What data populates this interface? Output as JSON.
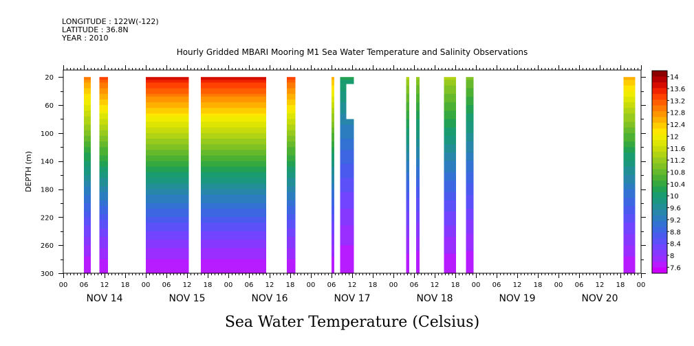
{
  "header": {
    "longitude": "LONGITUDE : 122W(-122)",
    "latitude": "LATITUDE : 36.8N",
    "year": "YEAR : 2010"
  },
  "chart_data": {
    "type": "heatmap",
    "title": "Hourly Gridded MBARI Mooring M1 Sea Water Temperature and Salinity Observations",
    "ylabel": "DEPTH (m)",
    "xlabel": "Sea Water Temperature (Celsius)",
    "y_ticks": [
      "20",
      "60",
      "100",
      "140",
      "180",
      "220",
      "260",
      "300"
    ],
    "y_range_m": [
      10,
      300
    ],
    "y_reversed": true,
    "x_range_hours": [
      0,
      168
    ],
    "x_tick_labels": [
      "00",
      "06",
      "12",
      "18",
      "00",
      "06",
      "12",
      "18",
      "00",
      "06",
      "12",
      "18",
      "00",
      "06",
      "12",
      "18",
      "00",
      "06",
      "12",
      "18",
      "00",
      "06",
      "12",
      "18",
      "00",
      "06",
      "12",
      "18",
      "00"
    ],
    "days": [
      "NOV 14",
      "NOV 15",
      "NOV 16",
      "NOV 17",
      "NOV 18",
      "NOV 19",
      "NOV 20"
    ],
    "colorbar": {
      "labels": [
        "14",
        "13.6",
        "13.2",
        "12.8",
        "12.4",
        "12",
        "11.6",
        "11.2",
        "10.8",
        "10.4",
        "10",
        "9.6",
        "9.2",
        "8.8",
        "8.4",
        "8",
        "7.6"
      ],
      "levels": [
        7.4,
        7.6,
        7.8,
        8.0,
        8.2,
        8.4,
        8.6,
        8.8,
        9.0,
        9.2,
        9.4,
        9.6,
        9.8,
        10.0,
        10.2,
        10.4,
        10.6,
        10.8,
        11.0,
        11.2,
        11.4,
        11.6,
        11.8,
        12.0,
        12.2,
        12.4,
        12.6,
        12.8,
        13.0,
        13.2,
        13.4,
        13.6,
        13.8,
        14.0,
        14.2
      ],
      "colors": [
        "#cc00ff",
        "#b61cff",
        "#9a2dff",
        "#8638ff",
        "#7244ff",
        "#5c50f8",
        "#4b5aee",
        "#3c66e2",
        "#3372d2",
        "#2c7dc0",
        "#2886ab",
        "#218f95",
        "#1c977f",
        "#1a9b70",
        "#22a154",
        "#35a840",
        "#4cb032",
        "#66b92a",
        "#80c224",
        "#98ca1e",
        "#b0d314",
        "#c8dc0c",
        "#dde504",
        "#f0ec00",
        "#ffe600",
        "#ffcc00",
        "#ffb000",
        "#ff9500",
        "#ff7a00",
        "#ff5e00",
        "#ff4200",
        "#f02200",
        "#d60c00",
        "#b40000",
        "#8c0000"
      ]
    },
    "segments": [
      {
        "start_h": 6,
        "end_h": 8,
        "sst": 13.0
      },
      {
        "start_h": 10.5,
        "end_h": 13,
        "sst": 13.4
      },
      {
        "start_h": 24,
        "end_h": 36.5,
        "sst": 13.8
      },
      {
        "start_h": 40,
        "end_h": 59,
        "sst": 13.8
      },
      {
        "start_h": 65,
        "end_h": 67.5,
        "sst": 13.4
      },
      {
        "start_h": 78,
        "end_h": 78.8,
        "sst": 12.6
      },
      {
        "start_h": 80.5,
        "end_h": 84.5,
        "sst": 10.2,
        "missing_depth_m": [
          30,
          80
        ],
        "missing_from_h": 82.3
      },
      {
        "start_h": 99.7,
        "end_h": 100.6,
        "sst": 11.4
      },
      {
        "start_h": 102.6,
        "end_h": 103.6,
        "sst": 11.2
      },
      {
        "start_h": 110.7,
        "end_h": 114.2,
        "sst": 11.4
      },
      {
        "start_h": 117.1,
        "end_h": 119.3,
        "sst": 11.0
      },
      {
        "start_h": 162.9,
        "end_h": 166.3,
        "sst": 12.6
      }
    ]
  }
}
